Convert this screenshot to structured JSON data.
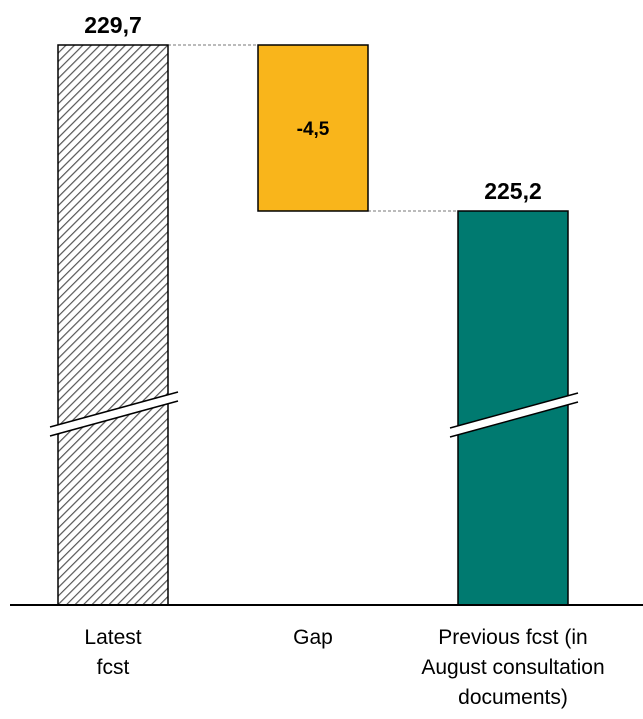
{
  "chart_data": {
    "type": "waterfall",
    "title": "",
    "xlabel": "",
    "ylabel": "",
    "axis_break": true,
    "grid": false,
    "legend": "none",
    "categories": [
      [
        "Latest",
        "fcst"
      ],
      [
        "Gap"
      ],
      [
        "Previous fcst (in",
        "August consultation",
        "documents)"
      ]
    ],
    "bars": [
      {
        "kind": "total",
        "value": 229.7,
        "label": "229,7",
        "fill": "hatched"
      },
      {
        "kind": "delta",
        "value": -4.5,
        "label": "-4,5",
        "fill": "#F9B51B"
      },
      {
        "kind": "total",
        "value": 225.2,
        "label": "225,2",
        "fill": "#007A70"
      }
    ]
  }
}
